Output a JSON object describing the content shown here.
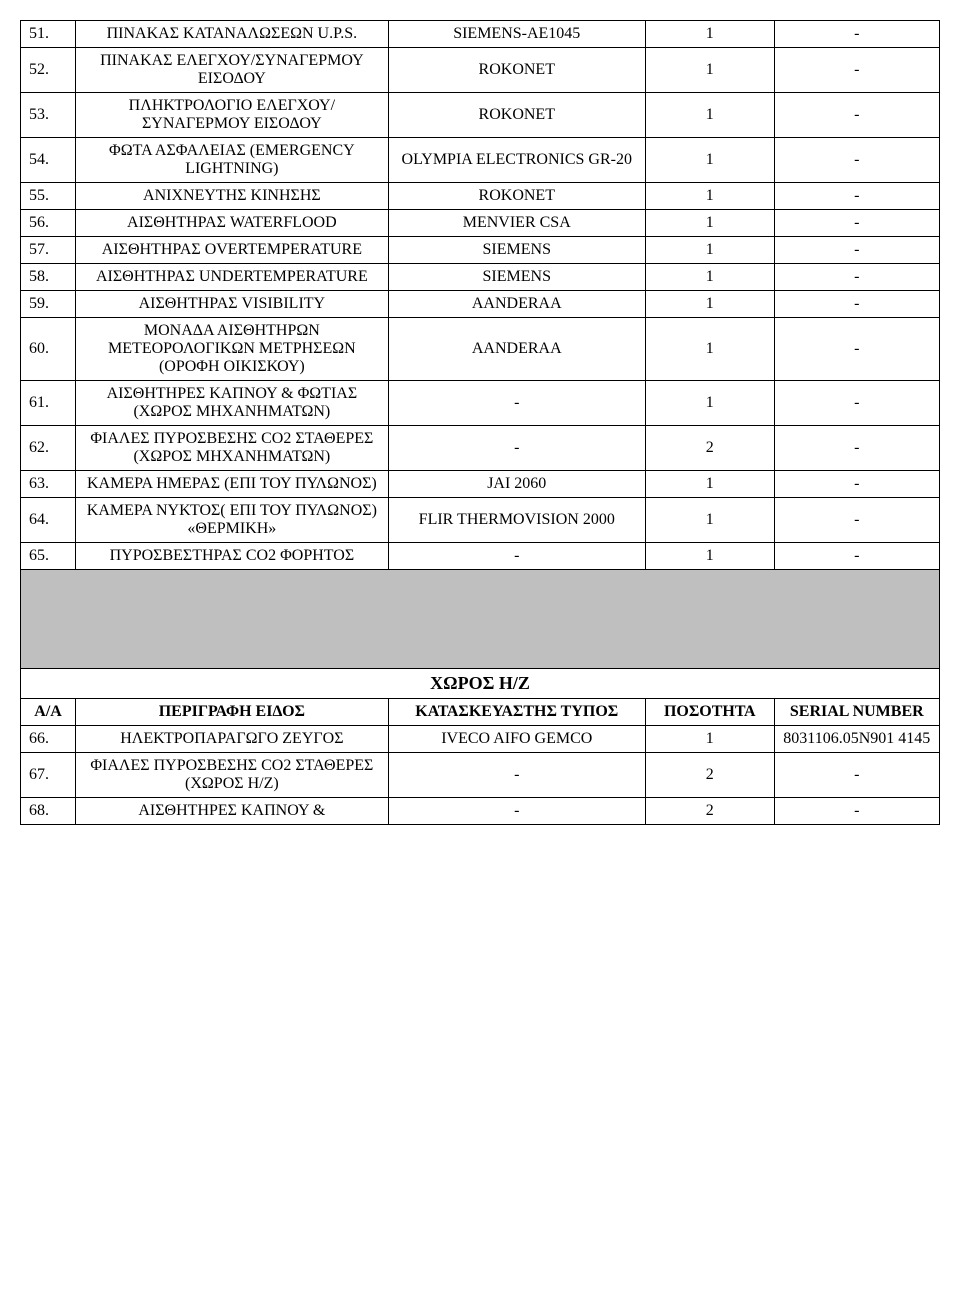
{
  "rows1": [
    {
      "n": "51.",
      "desc": "ΠΙΝΑΚΑΣ ΚΑΤΑΝΑΛΩΣΕΩΝ U.P.S.",
      "mfr": "SIEMENS-AE1045",
      "qty": "1",
      "sn": "-"
    },
    {
      "n": "52.",
      "desc": "ΠΙΝΑΚΑΣ ΕΛΕΓΧΟΥ/ΣΥΝΑΓΕΡΜΟΥ ΕΙΣΟΔΟΥ",
      "mfr": "ROKONET",
      "qty": "1",
      "sn": "-"
    },
    {
      "n": "53.",
      "desc": "ΠΛΗΚΤΡΟΛΟΓΙΟ ΕΛΕΓΧΟΥ/ΣΥΝΑΓΕΡΜΟΥ ΕΙΣΟΔΟΥ",
      "mfr": "ROKONET",
      "qty": "1",
      "sn": "-"
    },
    {
      "n": "54.",
      "desc": "ΦΩΤΑ ΑΣΦΑΛΕΙΑΣ (EMERGENCY LIGHTNING)",
      "mfr": "OLYMPIA ELECTRONICS GR-20",
      "qty": "1",
      "sn": "-"
    },
    {
      "n": "55.",
      "desc": "ΑΝΙΧΝΕΥΤΗΣ ΚΙΝΗΣΗΣ",
      "mfr": "ROKONET",
      "qty": "1",
      "sn": "-"
    },
    {
      "n": "56.",
      "desc": "ΑΙΣΘΗΤΗΡΑΣ WATERFLOOD",
      "mfr": "MENVIER CSA",
      "qty": "1",
      "sn": "-"
    },
    {
      "n": "57.",
      "desc": "ΑΙΣΘΗΤΗΡΑΣ OVERTEMPERATURE",
      "mfr": "SIEMENS",
      "qty": "1",
      "sn": "-"
    },
    {
      "n": "58.",
      "desc": "ΑΙΣΘΗΤΗΡΑΣ UNDERTEMPERATURE",
      "mfr": "SIEMENS",
      "qty": "1",
      "sn": "-"
    },
    {
      "n": "59.",
      "desc": "ΑΙΣΘΗΤΗΡΑΣ VISIBILITY",
      "mfr": "AANDERAA",
      "qty": "1",
      "sn": "-"
    },
    {
      "n": "60.",
      "desc": "ΜΟΝΑΔΑ ΑΙΣΘΗΤΗΡΩΝ ΜΕΤΕΟΡΟΛΟΓΙΚΩΝ ΜΕΤΡΗΣΕΩΝ (ΟΡΟΦΗ ΟΙΚΙΣΚΟΥ)",
      "mfr": "AANDERAA",
      "qty": "1",
      "sn": "-"
    },
    {
      "n": "61.",
      "desc": "ΑΙΣΘΗΤΗΡΕΣ ΚΑΠΝΟΥ & ΦΩΤΙΑΣ (ΧΩΡΟΣ ΜΗΧΑΝΗΜΑΤΩΝ)",
      "mfr": "-",
      "qty": "1",
      "sn": "-"
    },
    {
      "n": "62.",
      "desc": "ΦΙΑΛΕΣ ΠΥΡΟΣΒΕΣΗΣ CO2 ΣΤΑΘΕΡΕΣ (ΧΩΡΟΣ ΜΗΧΑΝΗΜΑΤΩΝ)",
      "mfr": "-",
      "qty": "2",
      "sn": "-"
    },
    {
      "n": "63.",
      "desc": "ΚΑΜΕΡΑ ΗΜΕΡΑΣ (ΕΠΙ ΤΟΥ ΠΥΛΩΝΟΣ)",
      "mfr": "JAI 2060",
      "qty": "1",
      "sn": "-"
    },
    {
      "n": "64.",
      "desc": "ΚΑΜΕΡΑ ΝΥΚΤΟΣ( ΕΠΙ ΤΟΥ ΠΥΛΩΝΟΣ) «ΘΕΡΜΙΚΗ»",
      "mfr": "FLIR THERMOVISION 2000",
      "qty": "1",
      "sn": "-"
    },
    {
      "n": "65.",
      "desc": "ΠΥΡΟΣΒΕΣΤΗΡΑΣ CO2 ΦΟΡΗΤΟΣ",
      "mfr": "-",
      "qty": "1",
      "sn": "-"
    }
  ],
  "section2": {
    "title": "ΧΩΡΟΣ Η/Ζ",
    "headers": {
      "aa": "Α/Α",
      "desc": "ΠΕΡΙΓΡΑΦΗ ΕΙΔΟΣ",
      "mfr": "ΚΑΤΑΣΚΕΥΑΣΤΗΣ ΤΥΠΟΣ",
      "qty": "ΠΟΣΟΤΗΤΑ",
      "sn": "SERIAL NUMBER"
    }
  },
  "rows2": [
    {
      "n": "66.",
      "desc": "ΗΛΕΚΤΡΟΠΑΡΑΓΩΓΟ ΖΕΥΓΟΣ",
      "mfr": "IVECO AIFO GEMCO",
      "qty": "1",
      "sn": "8031106.05N901 4145"
    },
    {
      "n": "67.",
      "desc": "ΦΙΑΛΕΣ ΠΥΡΟΣΒΕΣΗΣ CO2 ΣΤΑΘΕΡΕΣ (ΧΩΡΟΣ H/Z)",
      "mfr": "-",
      "qty": "2",
      "sn": "-"
    },
    {
      "n": "68.",
      "desc": "ΑΙΣΘΗΤΗΡΕΣ ΚΑΠΝΟΥ &",
      "mfr": "-",
      "qty": "2",
      "sn": "-"
    }
  ]
}
